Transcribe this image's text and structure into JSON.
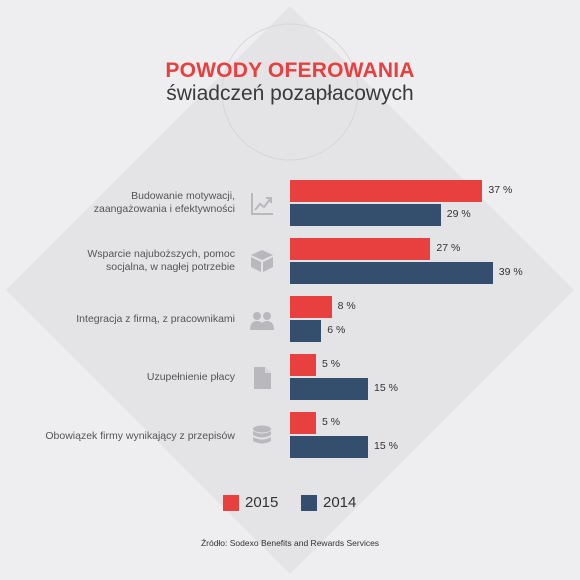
{
  "chart_data": {
    "type": "bar",
    "orientation": "horizontal",
    "title": "POWODY OFEROWANIA",
    "subtitle": "świadczeń pozapłacowych",
    "categories": [
      {
        "line1": "Budowanie motywacji,",
        "line2": "zaangażowania i efektywności"
      },
      {
        "line1": "Wsparcie najuboższych, pomoc",
        "line2": "socjalna, w nagłej potrzebie"
      },
      {
        "line1": "Integracja z firmą, z pracownikami"
      },
      {
        "line1": "Uzupełnienie płacy"
      },
      {
        "line1": "Obowiązek firmy wynikający z przepisów"
      }
    ],
    "series": [
      {
        "name": "2015",
        "values": [
          37,
          27,
          8,
          5,
          5
        ],
        "color": "#e8403f"
      },
      {
        "name": "2014",
        "values": [
          29,
          39,
          6,
          15,
          15
        ],
        "color": "#344f6e"
      }
    ],
    "labels": [
      [
        "37 %",
        "27 %",
        "8 %",
        "5 %",
        "5 %"
      ],
      [
        "29 %",
        "39 %",
        "6 %",
        "15 %",
        "15 %"
      ]
    ],
    "unit": "%",
    "legend_position": "bottom",
    "grid": false,
    "source": "Źródło: Sodexo Benefits and Rewards Services",
    "icons": [
      "growth-chart-icon",
      "box-icon",
      "people-icon",
      "document-icon",
      "database-icon"
    ]
  }
}
